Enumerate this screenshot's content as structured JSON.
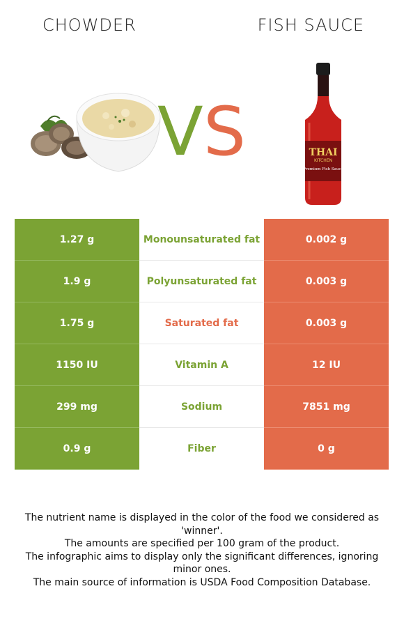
{
  "header": {
    "left_food": "CHOWDER",
    "right_food": "FISH SAUCE",
    "vs_left": "V",
    "vs_right": "S"
  },
  "colors": {
    "chowder": "#7ba334",
    "fish_sauce": "#e36b4a"
  },
  "rows": [
    {
      "left": "1.27 g",
      "nutrient": "Monounsaturated fat",
      "right": "0.002 g",
      "winner": "chowder"
    },
    {
      "left": "1.9 g",
      "nutrient": "Polyunsaturated fat",
      "right": "0.003 g",
      "winner": "chowder"
    },
    {
      "left": "1.75 g",
      "nutrient": "Saturated fat",
      "right": "0.003 g",
      "winner": "fish_sauce"
    },
    {
      "left": "1150 IU",
      "nutrient": "Vitamin A",
      "right": "12 IU",
      "winner": "chowder"
    },
    {
      "left": "299 mg",
      "nutrient": "Sodium",
      "right": "7851 mg",
      "winner": "chowder"
    },
    {
      "left": "0.9 g",
      "nutrient": "Fiber",
      "right": "0 g",
      "winner": "chowder"
    }
  ],
  "bottle_label": {
    "brand": "THAI",
    "sub": "KITCHEN",
    "product": "Premium Fish Sauce"
  },
  "footer": [
    "The nutrient name is displayed in the color of the food we considered as 'winner'.",
    "The amounts are specified per 100 gram of the product.",
    "The infographic aims to display only the significant differences, ignoring minor ones.",
    "The main source of information is USDA Food Composition Database."
  ]
}
